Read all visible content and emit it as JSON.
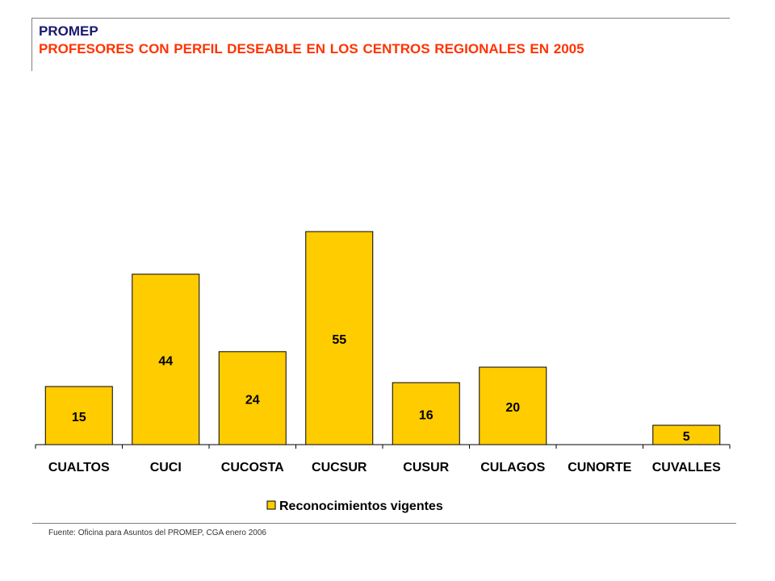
{
  "header": {
    "line1": "PROMEP",
    "line2": "PROFESORES CON PERFIL DESEABLE EN LOS CENTROS REGIONALES EN 2005"
  },
  "footer": {
    "source": "Fuente: Oficina para Asuntos del PROMEP,  CGA enero 2006"
  },
  "colors": {
    "bar_fill": "#FFCC00",
    "bar_stroke": "#000000",
    "title_primary": "#1a1a6e",
    "title_accent": "#ff3300"
  },
  "chart_data": {
    "type": "bar",
    "categories": [
      "CUALTOS",
      "CUCI",
      "CUCOSTA",
      "CUCSUR",
      "CUSUR",
      "CULAGOS",
      "CUNORTE",
      "CUVALLES"
    ],
    "series": [
      {
        "name": "Reconocimientos vigentes",
        "values": [
          15,
          44,
          24,
          55,
          16,
          20,
          0,
          5
        ],
        "labels": [
          "15",
          "44",
          "24",
          "55",
          "16",
          "20",
          "",
          "5"
        ]
      }
    ],
    "ylim": [
      0,
      60
    ],
    "grid": false,
    "legend_position": "bottom-center"
  }
}
